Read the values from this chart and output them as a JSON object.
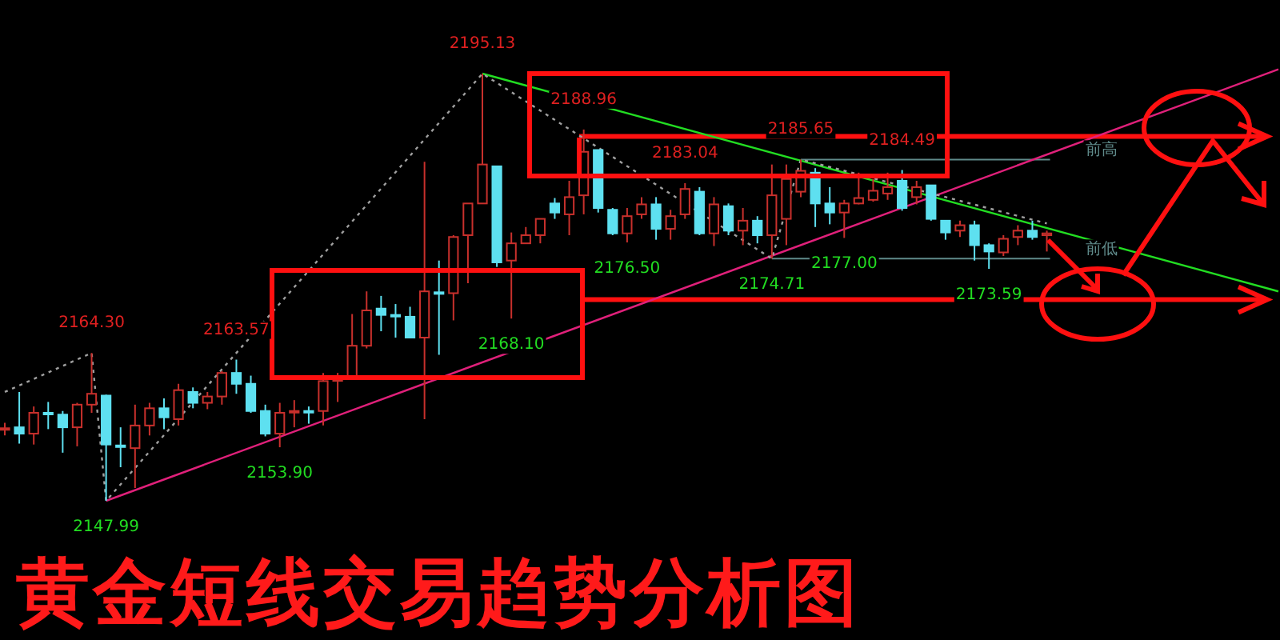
{
  "chart_data": {
    "type": "candlestick",
    "title": "黄金短线交易趋势分析图",
    "categories": [
      null,
      null,
      null,
      null,
      null,
      null,
      null,
      null,
      null,
      null,
      null,
      null,
      null,
      null,
      null,
      null,
      null,
      null,
      null,
      null,
      null,
      null,
      null,
      null,
      null,
      null,
      null,
      null,
      null,
      null,
      null,
      null,
      null,
      null,
      null,
      null,
      null,
      null,
      null,
      null,
      null,
      null,
      null,
      null,
      null,
      null,
      null,
      null,
      null,
      null,
      null,
      null,
      null,
      null,
      null,
      null,
      null,
      null,
      null,
      null,
      null,
      null,
      null,
      null,
      null,
      null,
      null,
      null,
      null,
      null,
      null,
      null,
      null,
      null,
      null,
      null,
      null,
      null,
      null,
      null,
      null,
      null,
      null,
      null,
      null,
      null,
      null,
      null,
      null
    ],
    "ohlc": [
      [
        2155.9,
        2156.6,
        2155.2,
        2156.0
      ],
      [
        2156.1,
        2160.0,
        2154.3,
        2155.4
      ],
      [
        2155.4,
        2158.4,
        2154.2,
        2157.7
      ],
      [
        2157.7,
        2158.9,
        2155.9,
        2157.6
      ],
      [
        2157.5,
        2157.9,
        2153.3,
        2156.1
      ],
      [
        2156.1,
        2158.8,
        2154.0,
        2158.6
      ],
      [
        2158.6,
        2164.3,
        2157.7,
        2159.8
      ],
      [
        2159.6,
        2159.7,
        2147.99,
        2154.2
      ],
      [
        2154.1,
        2156.1,
        2151.7,
        2154.0
      ],
      [
        2153.8,
        2158.6,
        2149.4,
        2156.3
      ],
      [
        2156.3,
        2158.8,
        2155.2,
        2158.2
      ],
      [
        2158.2,
        2159.3,
        2155.9,
        2157.2
      ],
      [
        2157.0,
        2160.9,
        2156.3,
        2160.2
      ],
      [
        2160.0,
        2160.5,
        2158.2,
        2158.8
      ],
      [
        2158.8,
        2160.0,
        2158.1,
        2159.5
      ],
      [
        2159.5,
        2162.3,
        2158.6,
        2162.1
      ],
      [
        2162.1,
        2163.57,
        2159.8,
        2160.9
      ],
      [
        2160.9,
        2161.8,
        2157.7,
        2157.9
      ],
      [
        2157.9,
        2158.6,
        2155.1,
        2155.4
      ],
      [
        2155.4,
        2158.8,
        2153.9,
        2157.7
      ],
      [
        2157.8,
        2159.1,
        2156.1,
        2157.9
      ],
      [
        2157.9,
        2158.4,
        2156.5,
        2157.8
      ],
      [
        2157.9,
        2162.1,
        2156.3,
        2161.2
      ],
      [
        2161.3,
        2162.1,
        2158.9,
        2161.4
      ],
      [
        2161.6,
        2168.6,
        2161.6,
        2165.1
      ],
      [
        2165.1,
        2171.1,
        2164.8,
        2169.0
      ],
      [
        2169.2,
        2170.6,
        2166.7,
        2168.5
      ],
      [
        2168.5,
        2169.7,
        2166.0,
        2168.4
      ],
      [
        2168.3,
        2169.4,
        2166.0,
        2166.0
      ],
      [
        2166.0,
        2185.4,
        2157.0,
        2171.1
      ],
      [
        2171.0,
        2174.5,
        2164.1,
        2170.9
      ],
      [
        2170.9,
        2177.3,
        2167.9,
        2177.1
      ],
      [
        2177.3,
        2180.8,
        2172.0,
        2180.8
      ],
      [
        2180.8,
        2195.13,
        2180.8,
        2185.1
      ],
      [
        2184.9,
        2184.9,
        2173.8,
        2174.3
      ],
      [
        2174.5,
        2177.6,
        2168.1,
        2176.4
      ],
      [
        2176.4,
        2178.2,
        2176.4,
        2177.3
      ],
      [
        2177.3,
        2179.1,
        2176.4,
        2179.1
      ],
      [
        2180.8,
        2181.4,
        2179.1,
        2179.8
      ],
      [
        2179.6,
        2183.3,
        2177.3,
        2181.5
      ],
      [
        2181.7,
        2188.96,
        2179.6,
        2186.5
      ],
      [
        2186.7,
        2186.7,
        2179.8,
        2180.3
      ],
      [
        2180.1,
        2180.3,
        2177.3,
        2177.5
      ],
      [
        2177.5,
        2180.3,
        2176.5,
        2179.4
      ],
      [
        2179.6,
        2181.5,
        2179.1,
        2180.7
      ],
      [
        2180.7,
        2181.5,
        2176.8,
        2178.0
      ],
      [
        2178.0,
        2180.1,
        2176.8,
        2179.4
      ],
      [
        2179.6,
        2183.04,
        2179.1,
        2182.4
      ],
      [
        2182.1,
        2182.6,
        2177.3,
        2177.5
      ],
      [
        2177.5,
        2181.5,
        2176.1,
        2180.7
      ],
      [
        2180.5,
        2180.8,
        2177.3,
        2177.8
      ],
      [
        2177.8,
        2180.3,
        2176.2,
        2178.9
      ],
      [
        2178.9,
        2179.4,
        2176.4,
        2177.3
      ],
      [
        2177.3,
        2185.1,
        2174.71,
        2181.7
      ],
      [
        2179.1,
        2185.1,
        2176.2,
        2183.5
      ],
      [
        2182.1,
        2185.65,
        2181.5,
        2184.4
      ],
      [
        2184.2,
        2184.7,
        2178.2,
        2180.8
      ],
      [
        2180.8,
        2182.6,
        2178.5,
        2179.8
      ],
      [
        2179.8,
        2181.2,
        2177.0,
        2180.8
      ],
      [
        2180.8,
        2184.2,
        2180.7,
        2181.4
      ],
      [
        2181.2,
        2183.5,
        2181.0,
        2182.2
      ],
      [
        2181.9,
        2184.2,
        2181.2,
        2182.6
      ],
      [
        2183.3,
        2184.49,
        2180.0,
        2180.3
      ],
      [
        2181.5,
        2183.3,
        2180.7,
        2182.6
      ],
      [
        2182.8,
        2182.8,
        2178.9,
        2179.1
      ],
      [
        2178.9,
        2178.9,
        2176.8,
        2177.6
      ],
      [
        2177.8,
        2178.9,
        2177.1,
        2178.4
      ],
      [
        2178.4,
        2178.9,
        2174.5,
        2176.2
      ],
      [
        2176.2,
        2176.4,
        2173.59,
        2175.5
      ],
      [
        2175.4,
        2177.3,
        2175.0,
        2176.9
      ],
      [
        2177.1,
        2178.4,
        2176.2,
        2177.8
      ],
      [
        2177.8,
        2178.9,
        2176.8,
        2177.1
      ],
      [
        2177.3,
        2177.8,
        2175.5,
        2177.5
      ],
      null,
      null,
      null,
      null,
      null,
      null,
      null,
      null,
      null,
      null,
      null,
      null,
      null,
      null,
      null,
      null
    ],
    "colors": [
      "#c8302c",
      "#5ee0f0",
      "#c8302c",
      "#5ee0f0",
      "#5ee0f0",
      "#c8302c",
      "#c8302c",
      "#5ee0f0",
      "#5ee0f0",
      "#c8302c",
      "#c8302c",
      "#5ee0f0",
      "#c8302c",
      "#5ee0f0",
      "#c8302c",
      "#c8302c",
      "#5ee0f0",
      "#5ee0f0",
      "#5ee0f0",
      "#c8302c",
      "#c8302c",
      "#5ee0f0",
      "#c8302c",
      "#c8302c",
      "#c8302c",
      "#c8302c",
      "#5ee0f0",
      "#5ee0f0",
      "#5ee0f0",
      "#c8302c",
      "#5ee0f0",
      "#c8302c",
      "#c8302c",
      "#c8302c",
      "#5ee0f0",
      "#c8302c",
      "#c8302c",
      "#c8302c",
      "#5ee0f0",
      "#c8302c",
      "#c8302c",
      "#5ee0f0",
      "#5ee0f0",
      "#c8302c",
      "#c8302c",
      "#5ee0f0",
      "#c8302c",
      "#c8302c",
      "#5ee0f0",
      "#c8302c",
      "#5ee0f0",
      "#c8302c",
      "#5ee0f0",
      "#c8302c",
      "#c8302c",
      "#c8302c",
      "#5ee0f0",
      "#5ee0f0",
      "#c8302c",
      "#c8302c",
      "#c8302c",
      "#c8302c",
      "#5ee0f0",
      "#c8302c",
      "#5ee0f0",
      "#5ee0f0",
      "#c8302c",
      "#5ee0f0",
      "#5ee0f0",
      "#c8302c",
      "#c8302c",
      "#5ee0f0",
      "#c8302c",
      null,
      null,
      null,
      null,
      null,
      null,
      null,
      null,
      null,
      null,
      null,
      null,
      null,
      null,
      null,
      null
    ],
    "series": [
      {
        "type": "line",
        "color": "#22dd22",
        "values": [
          null,
          null,
          null,
          null,
          null,
          null,
          null,
          null,
          null,
          null,
          null,
          null,
          null,
          null,
          null,
          null,
          null,
          null,
          null,
          null,
          null,
          null,
          null,
          null,
          null,
          null,
          null,
          null,
          null,
          null,
          null,
          null,
          null,
          2195.13,
          null,
          null,
          null,
          null,
          null,
          null,
          null,
          null,
          null,
          null,
          null,
          null,
          null,
          null,
          null,
          null,
          null,
          null,
          null,
          null,
          null,
          null,
          null,
          null,
          null,
          null,
          null,
          null,
          null,
          null,
          null,
          null,
          null,
          null,
          null,
          null,
          null,
          null,
          null,
          null,
          null,
          null,
          null,
          null,
          null,
          null,
          null,
          null,
          null,
          null,
          null,
          null,
          null,
          null,
          2171.1
        ]
      },
      {
        "type": "line",
        "color": "#e0207a",
        "values": [
          null,
          null,
          null,
          null,
          null,
          null,
          null,
          2147.99,
          null,
          null,
          null,
          null,
          null,
          null,
          null,
          null,
          null,
          null,
          null,
          null,
          null,
          null,
          null,
          null,
          null,
          null,
          null,
          null,
          null,
          null,
          null,
          null,
          null,
          null,
          null,
          null,
          null,
          null,
          null,
          null,
          null,
          null,
          null,
          null,
          null,
          null,
          null,
          null,
          null,
          null,
          null,
          null,
          null,
          null,
          null,
          null,
          null,
          null,
          null,
          null,
          null,
          null,
          null,
          null,
          null,
          null,
          null,
          null,
          null,
          null,
          null,
          null,
          null,
          null,
          null,
          null,
          null,
          null,
          null,
          null,
          null,
          null,
          null,
          null,
          null,
          null,
          null,
          null,
          2195.6
        ]
      },
      {
        "type": "line",
        "color": "#a0a0a0",
        "line_style": "dotted",
        "values": [
          2160.0,
          null,
          null,
          null,
          null,
          null,
          2164.3,
          2147.99,
          null,
          null,
          null,
          null,
          null,
          null,
          null,
          null,
          null,
          null,
          null,
          null,
          null,
          null,
          null,
          null,
          null,
          null,
          null,
          null,
          null,
          null,
          null,
          null,
          null,
          2195.13,
          null,
          null,
          null,
          null,
          null,
          null,
          null,
          null,
          null,
          null,
          null,
          null,
          null,
          null,
          null,
          null,
          null,
          null,
          null,
          2174.71,
          null,
          2185.65,
          null,
          null,
          null,
          null,
          null,
          null,
          null,
          null,
          null,
          null,
          null,
          null,
          null,
          null,
          null,
          null,
          2178.6,
          null,
          null,
          null,
          null,
          null,
          null,
          null,
          null,
          null,
          null,
          null,
          null,
          null,
          null,
          null,
          null
        ]
      }
    ],
    "ref_lines": [
      {
        "axis": "y",
        "value": 2185.65,
        "label": "前高",
        "color": "#5f8a8a"
      },
      {
        "axis": "y",
        "value": 2174.71,
        "label": "前低",
        "color": "#5f8a8a"
      },
      {
        "axis": "y",
        "value": 2188.2,
        "color": "#ff1010"
      },
      {
        "axis": "y",
        "value": 2170.2,
        "color": "#ff1010"
      }
    ],
    "annotations": [
      {
        "text": "2164.30",
        "y": 2164.3
      },
      {
        "text": "2147.99",
        "y": 2147.99
      },
      {
        "text": "2163.57",
        "y": 2163.57
      },
      {
        "text": "2153.90",
        "y": 2153.9
      },
      {
        "text": "2195.13",
        "y": 2195.13
      },
      {
        "text": "2168.10",
        "y": 2168.1
      },
      {
        "text": "2188.96",
        "y": 2188.96
      },
      {
        "text": "2183.04",
        "y": 2183.04
      },
      {
        "text": "2176.50",
        "y": 2176.5
      },
      {
        "text": "2174.71",
        "y": 2174.71
      },
      {
        "text": "2185.65",
        "y": 2185.65
      },
      {
        "text": "2177.00",
        "y": 2177.0
      },
      {
        "text": "2184.49",
        "y": 2184.49
      },
      {
        "text": "2173.59",
        "y": 2173.59
      }
    ]
  }
}
